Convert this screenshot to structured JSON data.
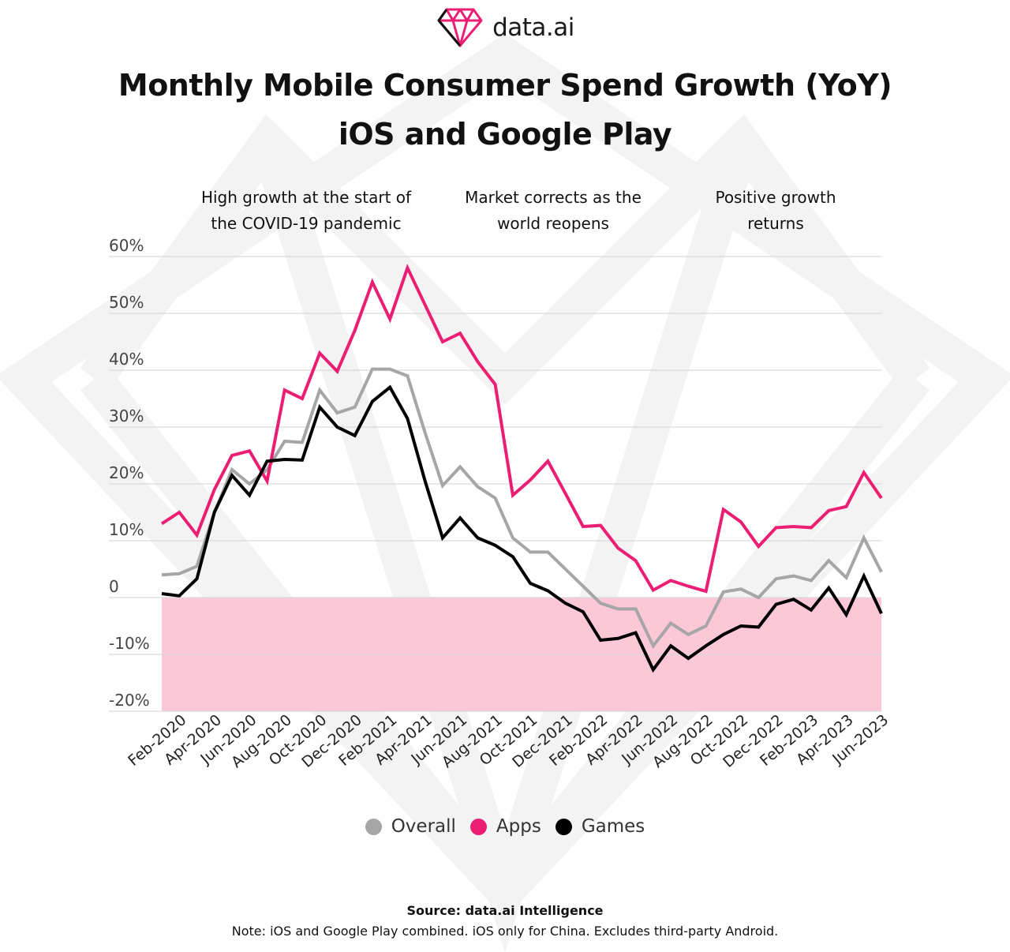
{
  "brand": {
    "name": "data.ai"
  },
  "title_line1": "Monthly Mobile Consumer Spend Growth (YoY)",
  "title_line2": "iOS and Google Play",
  "annotations": [
    {
      "line1": "High growth at the start of",
      "line2": "the  COVID-19 pandemic"
    },
    {
      "line1": "Market corrects as the",
      "line2": "world reopens"
    },
    {
      "line1": "Positive growth",
      "line2": "returns"
    }
  ],
  "source": "Source: data.ai Intelligence",
  "note": "Note: iOS and Google Play combined. iOS only for China. Excludes third-party Android.",
  "colors": {
    "overall": "#a6a6a6",
    "apps": "#ec1e74",
    "games": "#000000",
    "negative_band": "#fcc7d7",
    "grid": "#d9d9d9"
  },
  "chart_data": {
    "type": "line",
    "title": "Monthly Mobile Consumer Spend Growth (YoY)",
    "subtitle": "iOS and Google Play",
    "ylim": [
      -20,
      60
    ],
    "yticks": [
      -20,
      -10,
      0,
      10,
      20,
      30,
      40,
      50,
      60
    ],
    "ytick_labels": [
      "-20%",
      "-10%",
      "0",
      "10%",
      "20%",
      "30%",
      "40%",
      "50%",
      "60%"
    ],
    "x": [
      "Jan-2020",
      "Feb-2020",
      "Mar-2020",
      "Apr-2020",
      "May-2020",
      "Jun-2020",
      "Jul-2020",
      "Aug-2020",
      "Sep-2020",
      "Oct-2020",
      "Nov-2020",
      "Dec-2020",
      "Jan-2021",
      "Feb-2021",
      "Mar-2021",
      "Apr-2021",
      "May-2021",
      "Jun-2021",
      "Jul-2021",
      "Aug-2021",
      "Sep-2021",
      "Oct-2021",
      "Nov-2021",
      "Dec-2021",
      "Jan-2022",
      "Feb-2022",
      "Mar-2022",
      "Apr-2022",
      "May-2022",
      "Jun-2022",
      "Jul-2022",
      "Aug-2022",
      "Sep-2022",
      "Oct-2022",
      "Nov-2022",
      "Dec-2022",
      "Jan-2023",
      "Feb-2023",
      "Mar-2023",
      "Apr-2023",
      "May-2023",
      "Jun-2023"
    ],
    "x_tick_labels": [
      "Feb-2020",
      "Apr-2020",
      "Jun-2020",
      "Aug-2020",
      "Oct-2020",
      "Dec-2020",
      "Feb-2021",
      "Apr-2021",
      "Jun-2021",
      "Aug-2021",
      "Oct-2021",
      "Dec-2021",
      "Feb-2022",
      "Apr-2022",
      "Jun-2022",
      "Aug-2022",
      "Oct-2022",
      "Dec-2022",
      "Feb-2023",
      "Apr-2023",
      "Jun-2023"
    ],
    "negative_region": [
      -20,
      0
    ],
    "legend_position": "bottom",
    "series": [
      {
        "name": "Overall",
        "key": "overall",
        "values": [
          4,
          4.2,
          5.5,
          15,
          22.5,
          20,
          22.5,
          27.5,
          27.3,
          36.5,
          32.5,
          33.5,
          40.2,
          40.2,
          39,
          29,
          19.7,
          23,
          19.5,
          17.5,
          10.5,
          8,
          8,
          5,
          2,
          -1,
          -2,
          -2,
          -8.5,
          -4.5,
          -6.5,
          -5,
          1,
          1.5,
          0,
          3.3,
          3.8,
          3,
          6.5,
          3.5,
          10.5,
          4.5
        ]
      },
      {
        "name": "Apps",
        "key": "apps",
        "values": [
          13,
          15,
          11,
          19,
          25,
          25.8,
          20.5,
          36.5,
          35,
          43,
          39.8,
          47,
          55.5,
          49,
          58,
          51.5,
          45,
          46.5,
          41.5,
          37.5,
          18,
          20.7,
          24,
          18.3,
          12.5,
          12.7,
          8.7,
          6.5,
          1.3,
          3,
          2,
          1.1,
          15.5,
          13.3,
          9,
          12.3,
          12.5,
          12.3,
          15.3,
          16,
          22,
          17.5
        ]
      },
      {
        "name": "Games",
        "key": "games",
        "values": [
          0.7,
          0.3,
          3.3,
          15,
          21.5,
          18,
          24,
          24.3,
          24.2,
          33.5,
          30,
          28.5,
          34.5,
          37,
          31.5,
          20.5,
          10.5,
          14,
          10.5,
          9.2,
          7.2,
          2.5,
          1.2,
          -1,
          -2.5,
          -7.5,
          -7.2,
          -6.2,
          -12.7,
          -8.5,
          -10.7,
          -8.5,
          -6.5,
          -5,
          -5.2,
          -1.2,
          -0.3,
          -2.2,
          1.7,
          -3,
          3.8,
          -2.8
        ]
      }
    ]
  }
}
